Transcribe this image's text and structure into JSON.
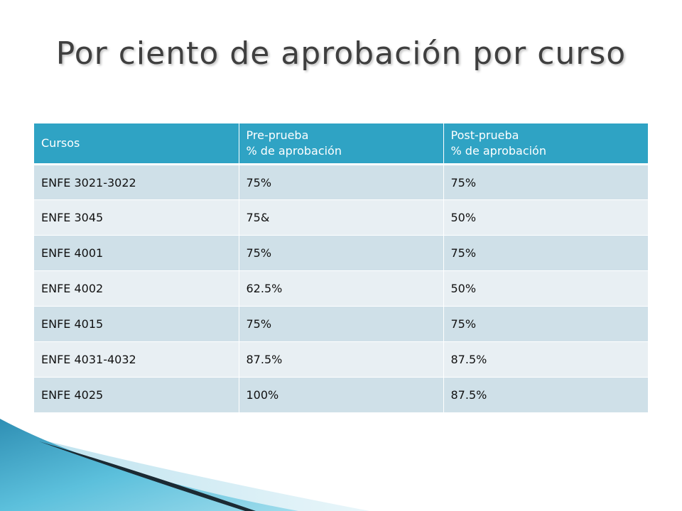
{
  "slide": {
    "title": "Por ciento de aprobación por curso"
  },
  "table": {
    "headers": [
      {
        "line1": "Cursos",
        "line2": ""
      },
      {
        "line1": "Pre-prueba",
        "line2": "% de aprobación"
      },
      {
        "line1": "Post-prueba",
        "line2": "% de aprobación"
      }
    ],
    "rows": [
      [
        "ENFE 3021-3022",
        "75%",
        "75%"
      ],
      [
        "ENFE 3045",
        "75&",
        "50%"
      ],
      [
        "ENFE 4001",
        "75%",
        "75%"
      ],
      [
        "ENFE 4002",
        "62.5%",
        "50%"
      ],
      [
        "ENFE 4015",
        "75%",
        "75%"
      ],
      [
        "ENFE 4031-4032",
        "87.5%",
        "87.5%"
      ],
      [
        "ENFE 4025",
        "100%",
        "87.5%"
      ]
    ]
  },
  "colors": {
    "header_bg": "#2fa3c4",
    "row_odd": "#cfe0e8",
    "row_even": "#e8eff3",
    "title_text": "#3f3f3f",
    "accent_dark": "#1b2a33",
    "accent_blue": "#3aa6c8"
  }
}
